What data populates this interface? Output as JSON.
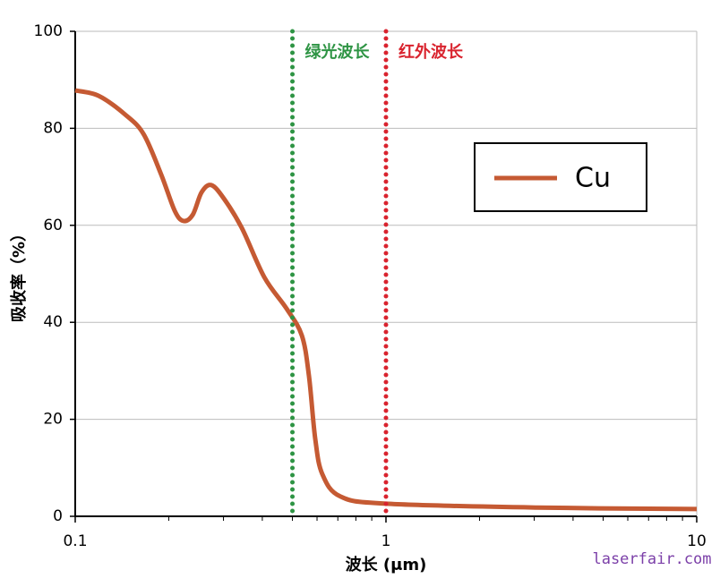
{
  "chart_data": {
    "type": "line",
    "x_label": "波长 (μm)",
    "y_label": "吸收率（%）",
    "x": [
      0.1,
      0.119,
      0.145,
      0.166,
      0.189,
      0.209,
      0.223,
      0.239,
      0.255,
      0.274,
      0.301,
      0.344,
      0.406,
      0.479,
      0.536,
      0.565,
      0.592,
      0.624,
      0.713,
      1.0,
      3.07,
      10
    ],
    "series": [
      {
        "name": "Cu",
        "color": "#c55a33",
        "values": [
          87.8,
          86.7,
          82.8,
          78.8,
          70.5,
          63,
          60.9,
          62.2,
          66.8,
          68.3,
          65.5,
          59.4,
          49.3,
          42.8,
          37.3,
          29,
          16,
          8.7,
          4.1,
          2.6,
          1.8,
          1.5
        ]
      }
    ],
    "xlog": true,
    "xlim": [
      0.1,
      10
    ],
    "xticks": [
      0.1,
      1,
      10
    ],
    "xminorticks": [
      0.2,
      0.3,
      0.4,
      0.5,
      0.6,
      0.7,
      0.8,
      0.9,
      2,
      3,
      4,
      5,
      6,
      7,
      8,
      9
    ],
    "ylim": [
      0,
      100
    ],
    "yticks": [
      0,
      20,
      40,
      60,
      80,
      100
    ],
    "grid": true,
    "annotations": [
      {
        "x": 0.5,
        "label": "绿光波长",
        "color": "#2e9444"
      },
      {
        "x": 1,
        "label": "红外波长",
        "color": "#d9232e"
      }
    ],
    "watermark": "laserfair.com"
  }
}
